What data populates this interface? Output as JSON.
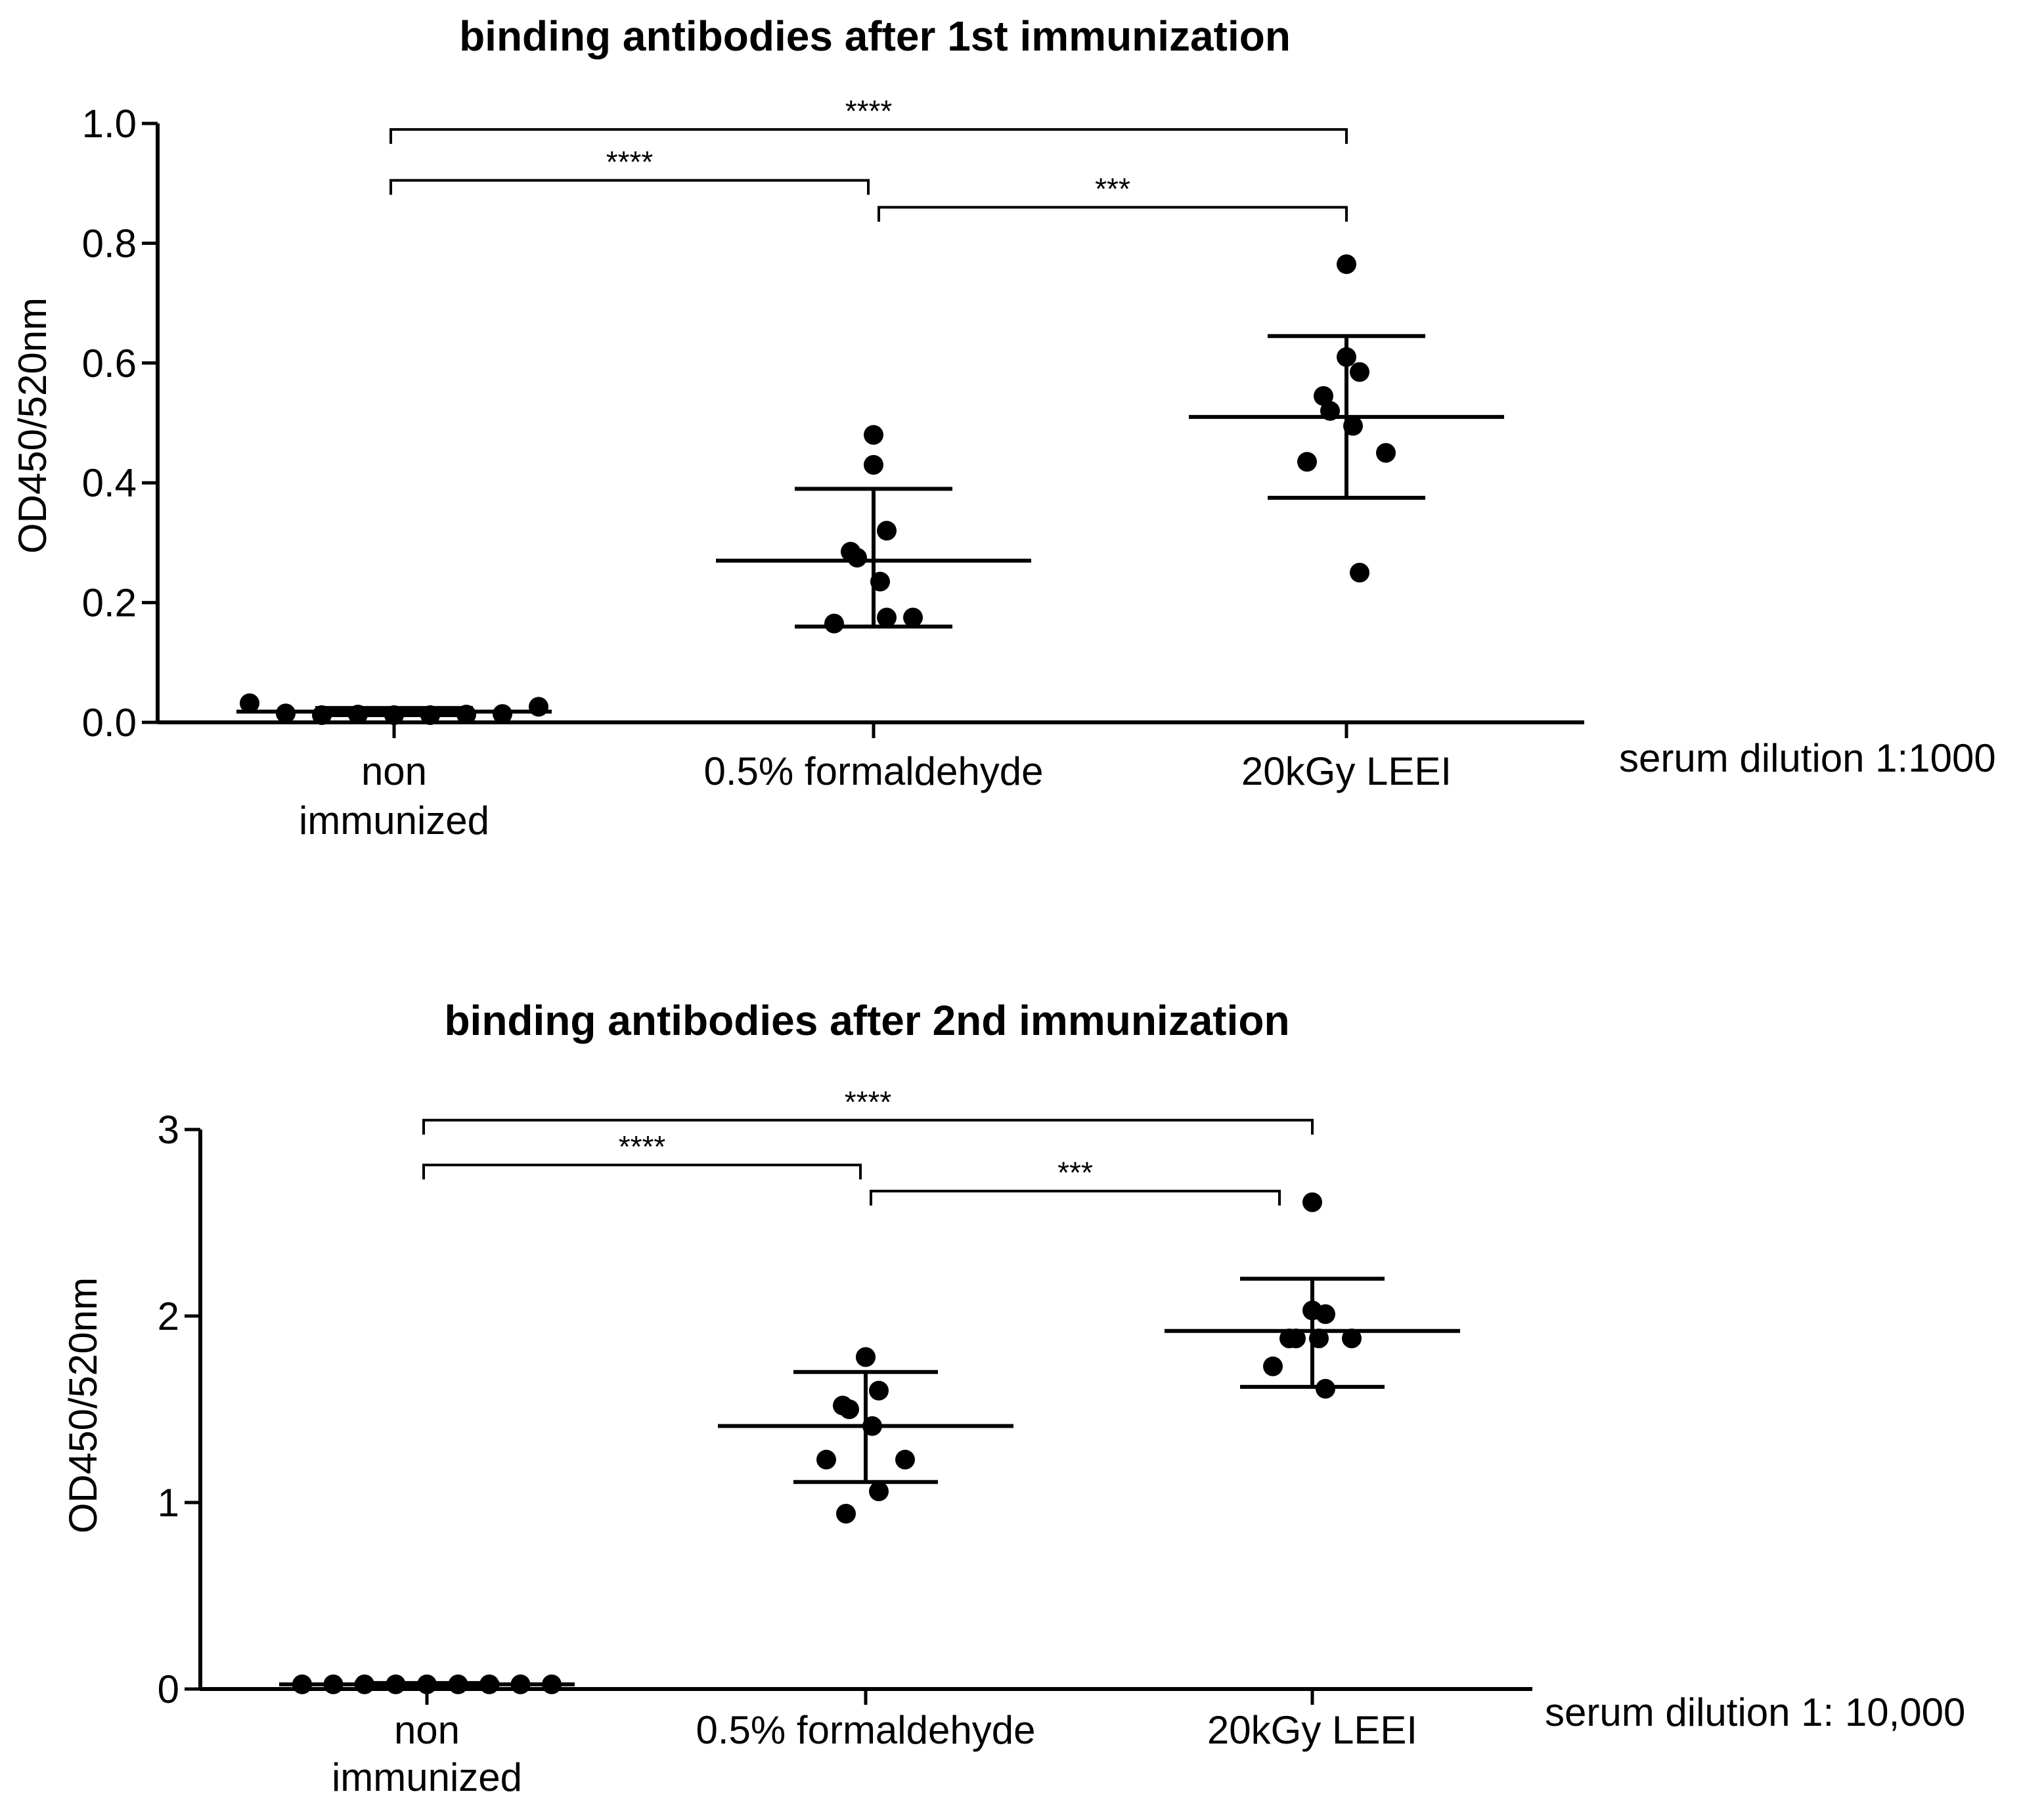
{
  "chart_data": [
    {
      "type": "scatter",
      "title": "binding antibodies after 1st immunization",
      "ylabel": "OD450/520nm",
      "xlabel": "",
      "ylim": [
        0,
        1.0
      ],
      "yticks": [
        0.0,
        0.2,
        0.4,
        0.6,
        0.8,
        1.0
      ],
      "ytick_labels": [
        "0.0",
        "0.2",
        "0.4",
        "0.6",
        "0.8",
        "1.0"
      ],
      "categories": [
        [
          "non",
          "immunized"
        ],
        [
          "0.5% formaldehyde"
        ],
        [
          "20kGy LEEI"
        ]
      ],
      "annotation": "serum dilution 1:1000",
      "groups": [
        {
          "name": "non immunized",
          "mean": 0.018,
          "sd_low": 0.012,
          "sd_high": 0.024,
          "points": [
            0.032,
            0.015,
            0.012,
            0.013,
            0.012,
            0.012,
            0.013,
            0.014,
            0.026
          ]
        },
        {
          "name": "0.5% formaldehyde",
          "mean": 0.27,
          "sd_low": 0.16,
          "sd_high": 0.39,
          "points": [
            0.48,
            0.43,
            0.32,
            0.285,
            0.275,
            0.235,
            0.175,
            0.165,
            0.175
          ]
        },
        {
          "name": "20kGy LEEI",
          "mean": 0.51,
          "sd_low": 0.375,
          "sd_high": 0.645,
          "points": [
            0.765,
            0.61,
            0.585,
            0.545,
            0.52,
            0.495,
            0.45,
            0.435,
            0.25
          ]
        }
      ],
      "significance": [
        {
          "from": 0,
          "to": 2,
          "label": "****",
          "y": 0.99
        },
        {
          "from": 0,
          "to": 1,
          "label": "****",
          "y": 0.905
        },
        {
          "from": 1,
          "to": 2,
          "label": "***",
          "y": 0.86
        }
      ]
    },
    {
      "type": "scatter",
      "title": "binding antibodies after 2nd immunization",
      "ylabel": "OD450/520nm",
      "xlabel": "",
      "ylim": [
        0,
        3
      ],
      "yticks": [
        0,
        1,
        2,
        3
      ],
      "ytick_labels": [
        "0",
        "1",
        "2",
        "3"
      ],
      "categories": [
        [
          "non",
          "immunized"
        ],
        [
          "0.5% formaldehyde"
        ],
        [
          "20kGy LEEI"
        ]
      ],
      "annotation": "serum dilution 1: 10,000",
      "groups": [
        {
          "name": "non immunized",
          "mean": 0.025,
          "sd_low": 0.018,
          "sd_high": 0.032,
          "points": [
            0.025,
            0.025,
            0.025,
            0.025,
            0.025,
            0.025,
            0.025,
            0.025,
            0.025
          ]
        },
        {
          "name": "0.5% formaldehyde",
          "mean": 1.41,
          "sd_low": 1.11,
          "sd_high": 1.7,
          "points": [
            1.78,
            1.78,
            1.6,
            1.52,
            1.5,
            1.41,
            1.23,
            1.23,
            1.06,
            0.94
          ]
        },
        {
          "name": "20kGy LEEI",
          "mean": 1.92,
          "sd_low": 1.62,
          "sd_high": 2.2,
          "points": [
            2.61,
            2.03,
            2.01,
            1.88,
            1.88,
            1.88,
            1.88,
            1.73,
            1.61
          ]
        }
      ],
      "significance": [
        {
          "from": 0,
          "to": 2,
          "label": "****",
          "y": 3.05
        },
        {
          "from": 0,
          "to": 1,
          "label": "****",
          "y": 2.81
        },
        {
          "from": 1,
          "to": 2,
          "label": "***",
          "y": 2.67
        }
      ]
    }
  ]
}
